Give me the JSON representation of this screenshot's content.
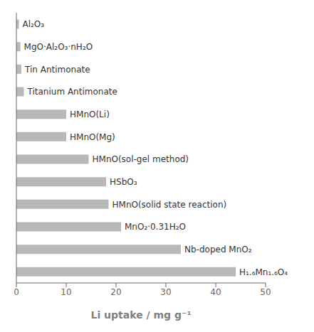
{
  "chart_data": {
    "type": "bar",
    "orientation": "horizontal",
    "categories": [
      "Al₂O₃",
      "MgO·Al₂O₃·nH₂O",
      "Tin Antimonate",
      "Titanium Antimonate",
      "HMnO(Li)",
      "HMnO(Mg)",
      "HMnO(sol-gel method)",
      "HSbO₃",
      "HMnO(solid state reaction)",
      "MnO₂·0.31H₂O",
      "Nb-doped MnO₂",
      "H₁.₆Mn₁.₆O₄"
    ],
    "values": [
      0.5,
      0.8,
      1.0,
      1.5,
      10.0,
      10.0,
      14.5,
      18.0,
      18.5,
      21.0,
      33.0,
      44.0
    ],
    "color": "#b8b8b8",
    "xlabel": "Li uptake / mg g⁻¹",
    "xlim": [
      0,
      50
    ],
    "xticks": [
      0,
      10,
      20,
      30,
      40,
      50
    ],
    "tick_labels": "x",
    "grid": false
  }
}
